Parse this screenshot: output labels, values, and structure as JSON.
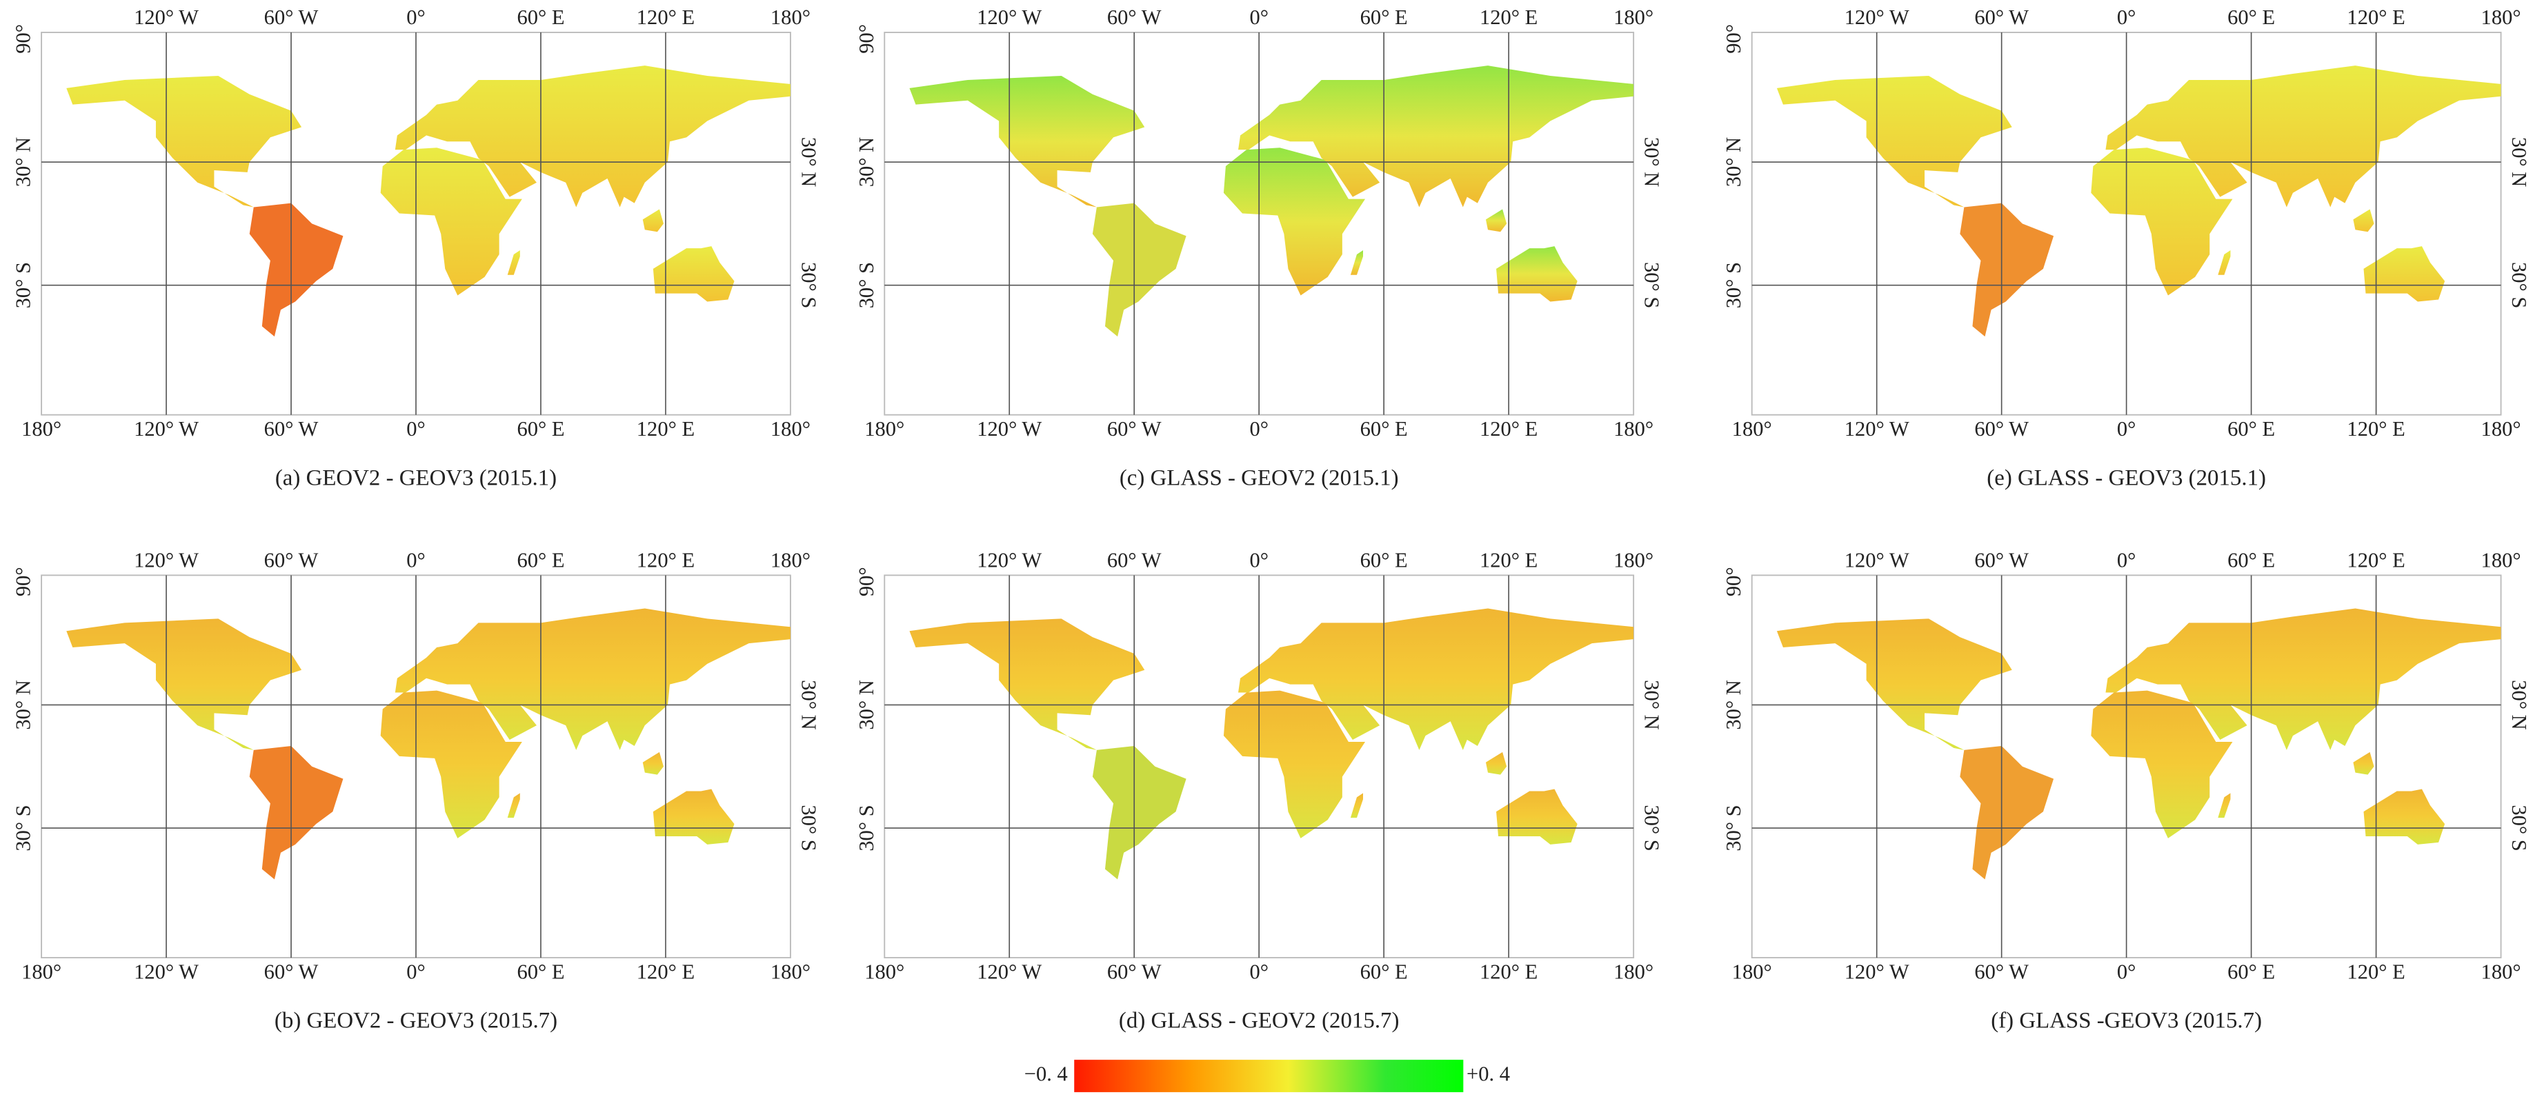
{
  "axes": {
    "top_ticks": [
      "120° W",
      "60° W",
      "0°",
      "60° E",
      "120° E",
      "180°"
    ],
    "bottom_ticks": [
      "180°",
      "120° W",
      "60° W",
      "0°",
      "60° E",
      "120° E",
      "180°"
    ],
    "left_ticks": [
      "90°",
      "30° N",
      "30° S"
    ],
    "right_ticks": [
      "30° N",
      "30° S"
    ]
  },
  "panels": [
    {
      "caption": "(a) GEOV2 - GEOV3 (2015.1)"
    },
    {
      "caption": "(c) GLASS - GEOV2 (2015.1)"
    },
    {
      "caption": "(e) GLASS - GEOV3 (2015.1)"
    },
    {
      "caption": "(b) GEOV2 - GEOV3 (2015.7)"
    },
    {
      "caption": "(d) GLASS - GEOV2 (2015.7)"
    },
    {
      "caption": "(f) GLASS -GEOV3 (2015.7)"
    }
  ],
  "colorbar": {
    "min_label": "−0. 4",
    "max_label": "+0. 4"
  }
}
